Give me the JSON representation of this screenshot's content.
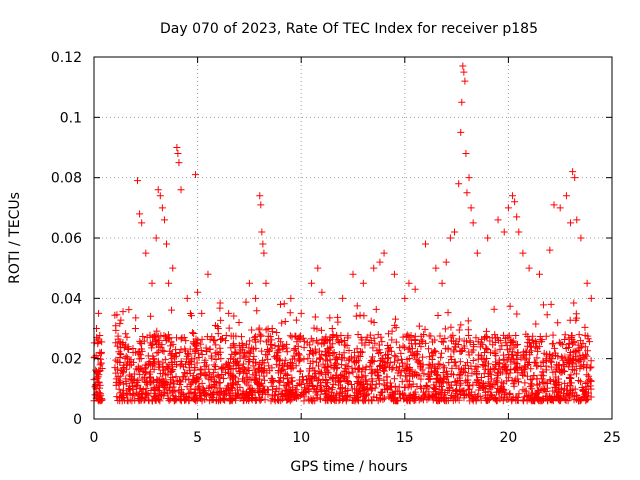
{
  "chart_data": {
    "type": "scatter",
    "title": "Day 070 of 2023, Rate Of TEC Index for receiver p185",
    "xlabel": "GPS time / hours",
    "ylabel": "ROTI / TECUs",
    "xlim": [
      0,
      25
    ],
    "ylim": [
      0,
      0.12
    ],
    "xticks": [
      0,
      5,
      10,
      15,
      20,
      25
    ],
    "xtick_labels": [
      "0",
      "5",
      "10",
      "15",
      "20",
      "25"
    ],
    "yticks": [
      0,
      0.02,
      0.04,
      0.06,
      0.08,
      0.1,
      0.12
    ],
    "ytick_labels": [
      "0",
      "0.02",
      "0.04",
      "0.06",
      "0.08",
      "0.1",
      "0.12"
    ],
    "grid": true,
    "marker": "+",
    "series": [
      {
        "name": "ROTI",
        "color": "#ff0000",
        "x": [
          0.1,
          0.15,
          0.2,
          0.25,
          0.3,
          0.05,
          0.12,
          0.18,
          0.22,
          0.28,
          0.08,
          0.2,
          0.3,
          1.2,
          1.5,
          1.8,
          2.0,
          2.1,
          2.2,
          2.3,
          2.5,
          2.8,
          3.0,
          3.1,
          3.2,
          3.3,
          3.4,
          3.5,
          3.6,
          3.8,
          4.0,
          4.05,
          4.1,
          4.2,
          4.5,
          4.9,
          5.0,
          5.2,
          5.5,
          6.0,
          6.5,
          7.0,
          7.5,
          7.8,
          8.0,
          8.05,
          8.1,
          8.15,
          8.2,
          8.3,
          8.6,
          9.0,
          9.5,
          10.0,
          10.5,
          10.8,
          11.0,
          11.5,
          12.0,
          12.5,
          13.0,
          13.5,
          13.8,
          14.0,
          14.5,
          15.0,
          15.2,
          15.5,
          16.0,
          16.5,
          16.8,
          17.0,
          17.2,
          17.4,
          17.6,
          17.7,
          17.75,
          17.8,
          17.85,
          17.9,
          17.95,
          18.0,
          18.1,
          18.2,
          18.3,
          18.5,
          19.0,
          19.5,
          19.8,
          20.0,
          20.2,
          20.3,
          20.4,
          20.5,
          20.7,
          21.0,
          21.5,
          22.0,
          22.2,
          22.5,
          22.8,
          23.0,
          23.1,
          23.2,
          23.3,
          23.5,
          23.8,
          24.0
        ],
        "y": [
          0.01,
          0.015,
          0.02,
          0.012,
          0.018,
          0.008,
          0.03,
          0.025,
          0.035,
          0.022,
          0.011,
          0.014,
          0.016,
          0.012,
          0.02,
          0.018,
          0.03,
          0.079,
          0.068,
          0.065,
          0.055,
          0.045,
          0.06,
          0.076,
          0.074,
          0.07,
          0.066,
          0.058,
          0.045,
          0.05,
          0.09,
          0.088,
          0.085,
          0.076,
          0.04,
          0.081,
          0.042,
          0.035,
          0.048,
          0.03,
          0.035,
          0.032,
          0.045,
          0.04,
          0.074,
          0.071,
          0.062,
          0.058,
          0.055,
          0.045,
          0.03,
          0.038,
          0.04,
          0.035,
          0.045,
          0.05,
          0.042,
          0.03,
          0.04,
          0.048,
          0.045,
          0.05,
          0.052,
          0.055,
          0.048,
          0.04,
          0.045,
          0.043,
          0.058,
          0.05,
          0.045,
          0.052,
          0.06,
          0.062,
          0.078,
          0.095,
          0.105,
          0.117,
          0.115,
          0.112,
          0.088,
          0.075,
          0.08,
          0.07,
          0.065,
          0.055,
          0.06,
          0.066,
          0.062,
          0.07,
          0.074,
          0.072,
          0.067,
          0.062,
          0.055,
          0.05,
          0.048,
          0.056,
          0.071,
          0.07,
          0.074,
          0.065,
          0.082,
          0.08,
          0.066,
          0.06,
          0.045,
          0.04
        ],
        "baseline_band": {
          "low": 0.006,
          "high": 0.028
        }
      }
    ]
  }
}
